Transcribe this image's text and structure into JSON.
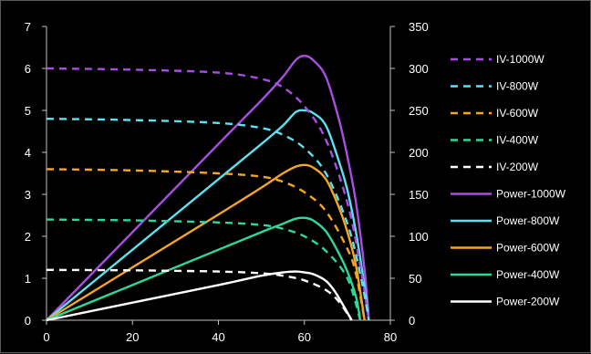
{
  "chart_data": {
    "type": "line",
    "x_axis": {
      "min": 0,
      "max": 80,
      "ticks": [
        0,
        20,
        40,
        60,
        80
      ]
    },
    "y_left": {
      "min": 0,
      "max": 7,
      "ticks": [
        0,
        1,
        2,
        3,
        4,
        5,
        6,
        7
      ]
    },
    "y_right": {
      "min": 0,
      "max": 350,
      "ticks": [
        0,
        50,
        100,
        150,
        200,
        250,
        300,
        350
      ]
    },
    "grid": false,
    "legend_position": "right",
    "series": [
      {
        "name": "IV-1000W",
        "axis": "left",
        "style": "dashed",
        "color": "#a94fe0",
        "points": [
          [
            0,
            6.0
          ],
          [
            20,
            5.97
          ],
          [
            40,
            5.9
          ],
          [
            50,
            5.75
          ],
          [
            55,
            5.55
          ],
          [
            60,
            5.1
          ],
          [
            65,
            4.3
          ],
          [
            70,
            2.8
          ],
          [
            73,
            1.3
          ],
          [
            75,
            0
          ]
        ]
      },
      {
        "name": "IV-800W",
        "axis": "left",
        "style": "dashed",
        "color": "#5ce1f0",
        "points": [
          [
            0,
            4.8
          ],
          [
            20,
            4.77
          ],
          [
            40,
            4.7
          ],
          [
            50,
            4.58
          ],
          [
            55,
            4.42
          ],
          [
            60,
            4.1
          ],
          [
            65,
            3.5
          ],
          [
            70,
            2.3
          ],
          [
            73,
            1.1
          ],
          [
            75,
            0
          ]
        ]
      },
      {
        "name": "IV-600W",
        "axis": "left",
        "style": "dashed",
        "color": "#f5a623",
        "points": [
          [
            0,
            3.6
          ],
          [
            20,
            3.57
          ],
          [
            40,
            3.5
          ],
          [
            50,
            3.42
          ],
          [
            55,
            3.3
          ],
          [
            60,
            3.05
          ],
          [
            65,
            2.6
          ],
          [
            70,
            1.7
          ],
          [
            72,
            1.1
          ],
          [
            74,
            0
          ]
        ]
      },
      {
        "name": "IV-400W",
        "axis": "left",
        "style": "dashed",
        "color": "#2ed89a",
        "points": [
          [
            0,
            2.4
          ],
          [
            20,
            2.38
          ],
          [
            40,
            2.33
          ],
          [
            50,
            2.27
          ],
          [
            55,
            2.18
          ],
          [
            60,
            2.0
          ],
          [
            65,
            1.65
          ],
          [
            70,
            1.0
          ],
          [
            73,
            0
          ]
        ]
      },
      {
        "name": "IV-200W",
        "axis": "left",
        "style": "dashed",
        "color": "#ffffff",
        "points": [
          [
            0,
            1.2
          ],
          [
            20,
            1.19
          ],
          [
            40,
            1.16
          ],
          [
            50,
            1.12
          ],
          [
            55,
            1.06
          ],
          [
            60,
            0.95
          ],
          [
            65,
            0.72
          ],
          [
            68,
            0.45
          ],
          [
            71,
            0
          ]
        ]
      },
      {
        "name": "Power-1000W",
        "axis": "right",
        "style": "solid",
        "color": "#a94fe0",
        "points": [
          [
            0,
            0
          ],
          [
            20,
            105
          ],
          [
            40,
            210
          ],
          [
            50,
            262
          ],
          [
            55,
            290
          ],
          [
            58,
            310
          ],
          [
            60,
            315
          ],
          [
            62,
            310
          ],
          [
            65,
            290
          ],
          [
            68,
            240
          ],
          [
            70,
            195
          ],
          [
            72,
            140
          ],
          [
            74,
            60
          ],
          [
            75,
            0
          ]
        ]
      },
      {
        "name": "Power-800W",
        "axis": "right",
        "style": "solid",
        "color": "#5ce1f0",
        "points": [
          [
            0,
            0
          ],
          [
            20,
            84
          ],
          [
            40,
            168
          ],
          [
            50,
            210
          ],
          [
            55,
            232
          ],
          [
            58,
            248
          ],
          [
            60,
            250
          ],
          [
            62,
            247
          ],
          [
            65,
            232
          ],
          [
            68,
            190
          ],
          [
            70,
            155
          ],
          [
            72,
            105
          ],
          [
            74,
            40
          ],
          [
            75,
            0
          ]
        ]
      },
      {
        "name": "Power-600W",
        "axis": "right",
        "style": "solid",
        "color": "#f5a623",
        "points": [
          [
            0,
            0
          ],
          [
            20,
            63
          ],
          [
            40,
            126
          ],
          [
            50,
            158
          ],
          [
            55,
            175
          ],
          [
            58,
            183
          ],
          [
            60,
            185
          ],
          [
            62,
            182
          ],
          [
            65,
            168
          ],
          [
            68,
            135
          ],
          [
            70,
            105
          ],
          [
            72,
            65
          ],
          [
            74,
            0
          ]
        ]
      },
      {
        "name": "Power-400W",
        "axis": "right",
        "style": "solid",
        "color": "#2ed89a",
        "points": [
          [
            0,
            0
          ],
          [
            20,
            42
          ],
          [
            40,
            84
          ],
          [
            50,
            105
          ],
          [
            55,
            115
          ],
          [
            58,
            121
          ],
          [
            60,
            122
          ],
          [
            62,
            119
          ],
          [
            65,
            106
          ],
          [
            68,
            80
          ],
          [
            70,
            58
          ],
          [
            72,
            28
          ],
          [
            73,
            0
          ]
        ]
      },
      {
        "name": "Power-200W",
        "axis": "right",
        "style": "solid",
        "color": "#ffffff",
        "points": [
          [
            0,
            0
          ],
          [
            20,
            21
          ],
          [
            40,
            42
          ],
          [
            50,
            53
          ],
          [
            55,
            57
          ],
          [
            58,
            58
          ],
          [
            60,
            57
          ],
          [
            62,
            55
          ],
          [
            65,
            47
          ],
          [
            67,
            35
          ],
          [
            69,
            18
          ],
          [
            71,
            0
          ]
        ]
      }
    ]
  }
}
